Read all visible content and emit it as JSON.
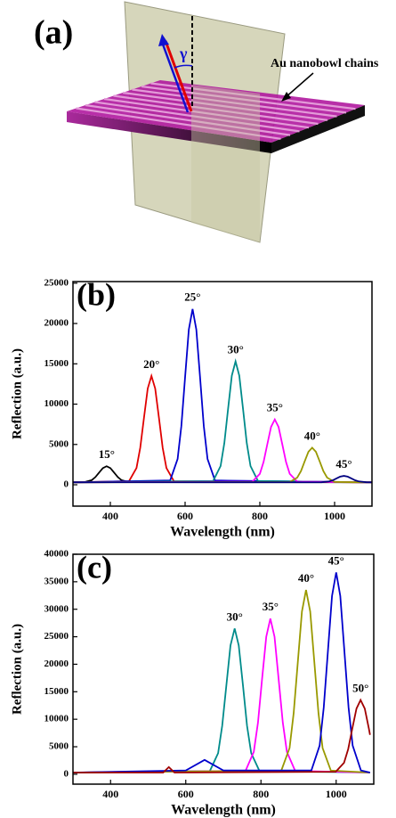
{
  "diagram": {
    "label": "(a)",
    "angle": "γ",
    "annotation": "Au nanobowl chains"
  },
  "chart_data": [
    {
      "type": "line",
      "panel_label": "(b)",
      "xlabel": "Wavelength (nm)",
      "ylabel": "Reflection (a.u.)",
      "xlim": [
        300,
        1100
      ],
      "ylim": [
        -2650,
        25200
      ],
      "xticks": [
        400,
        600,
        800,
        1000
      ],
      "yticks": [
        0,
        5000,
        10000,
        15000,
        20000,
        25000
      ],
      "series": [
        {
          "name": "15°",
          "color": "#000000",
          "x": [
            300,
            330,
            350,
            360,
            370,
            380,
            390,
            400,
            410,
            420,
            430,
            450,
            1100
          ],
          "values": [
            300,
            322,
            570,
            950,
            1514,
            2064,
            2300,
            2064,
            1514,
            950,
            570,
            322,
            300
          ]
        },
        {
          "name": "20°",
          "color": "#e00000",
          "x": [
            300,
            450,
            470,
            480,
            490,
            500,
            510,
            520,
            530,
            540,
            550,
            570,
            1100
          ],
          "values": [
            300,
            445,
            2082,
            4590,
            8312,
            11942,
            13500,
            11942,
            8312,
            4590,
            2082,
            445,
            300
          ]
        },
        {
          "name": "25°",
          "color": "#0000cc",
          "x": [
            300,
            560,
            580,
            590,
            600,
            610,
            620,
            630,
            640,
            650,
            660,
            680,
            1100
          ],
          "values": [
            300,
            537,
            3203,
            7288,
            13351,
            19263,
            21800,
            19263,
            13351,
            7288,
            3203,
            537,
            300
          ]
        },
        {
          "name": "30°",
          "color": "#008b8b",
          "x": [
            300,
            675,
            695,
            705,
            715,
            725,
            735,
            745,
            755,
            765,
            775,
            795,
            1100
          ],
          "values": [
            300,
            465,
            2325,
            5175,
            9405,
            13530,
            15300,
            13530,
            9405,
            5175,
            2325,
            465,
            300
          ]
        },
        {
          "name": "35°",
          "color": "#ff00ff",
          "x": [
            300,
            780,
            800,
            810,
            820,
            830,
            840,
            850,
            860,
            870,
            880,
            900,
            1100
          ],
          "values": [
            300,
            386,
            1353,
            2835,
            5035,
            7180,
            8100,
            7180,
            5035,
            2835,
            1353,
            386,
            300
          ]
        },
        {
          "name": "40°",
          "color": "#999900",
          "x": [
            300,
            880,
            900,
            910,
            920,
            930,
            940,
            950,
            960,
            970,
            980,
            1000,
            1100
          ],
          "values": [
            300,
            347,
            881,
            1698,
            2910,
            4093,
            4600,
            4093,
            2910,
            1698,
            881,
            347,
            300
          ]
        },
        {
          "name": "45°",
          "color": "#000080",
          "x": [
            300,
            965,
            985,
            995,
            1005,
            1015,
            1025,
            1035,
            1045,
            1055,
            1065,
            1085,
            1100
          ],
          "values": [
            300,
            309,
            408,
            560,
            786,
            1006,
            1100,
            1006,
            786,
            560,
            408,
            309,
            300
          ]
        }
      ]
    },
    {
      "type": "line",
      "panel_label": "(c)",
      "xlabel": "Wavelength (nm)",
      "ylabel": "Reflection (a.u.)",
      "xlim": [
        300,
        1100
      ],
      "ylim": [
        -1800,
        40000
      ],
      "xticks": [
        400,
        600,
        800,
        1000
      ],
      "yticks": [
        0,
        5000,
        10000,
        15000,
        20000,
        25000,
        30000,
        35000,
        40000
      ],
      "series": [
        {
          "name": "30°",
          "color": "#008b8b",
          "x": [
            300,
            664,
            686,
            697,
            708,
            719,
            730,
            741,
            752,
            763,
            774,
            796,
            1090
          ],
          "values": [
            300,
            588,
            3837,
            8815,
            16203,
            23408,
            26500,
            23408,
            16203,
            8815,
            3837,
            588,
            300
          ]
        },
        {
          "name": "35°",
          "color": "#ff00ff",
          "x": [
            300,
            759,
            781,
            792,
            803,
            814,
            825,
            836,
            847,
            858,
            869,
            891,
            1090
          ],
          "values": [
            300,
            608,
            4080,
            9400,
            17296,
            24996,
            28300,
            24996,
            17296,
            9400,
            4080,
            608,
            300
          ]
        },
        {
          "name": "40°",
          "color": "#999900",
          "x": [
            300,
            854,
            876,
            887,
            898,
            909,
            920,
            931,
            942,
            953,
            964,
            986,
            1090
          ],
          "values": [
            300,
            665,
            4782,
            11090,
            20452,
            29582,
            33500,
            29582,
            20452,
            11090,
            4782,
            665,
            300
          ]
        },
        {
          "name": "45°",
          "color": "#0000cc",
          "x": [
            300,
            600,
            650,
            700,
            934,
            956,
            967,
            978,
            989,
            1000,
            1011,
            1022,
            1033,
            1044,
            1066,
            1090
          ],
          "values": [
            300,
            700,
            2600,
            700,
            700,
            5214,
            12130,
            22395,
            32405,
            36700,
            32405,
            22395,
            12130,
            5214,
            700,
            300
          ]
        },
        {
          "name": "50°",
          "color": "#a00000",
          "x": [
            300,
            540,
            555,
            570,
            999,
            1021,
            1032,
            1043,
            1054,
            1065,
            1076,
            1087,
            1090
          ],
          "values": [
            300,
            300,
            1300,
            300,
            445,
            2082,
            4590,
            8312,
            11942,
            13500,
            11942,
            8312,
            7160
          ]
        }
      ]
    }
  ]
}
